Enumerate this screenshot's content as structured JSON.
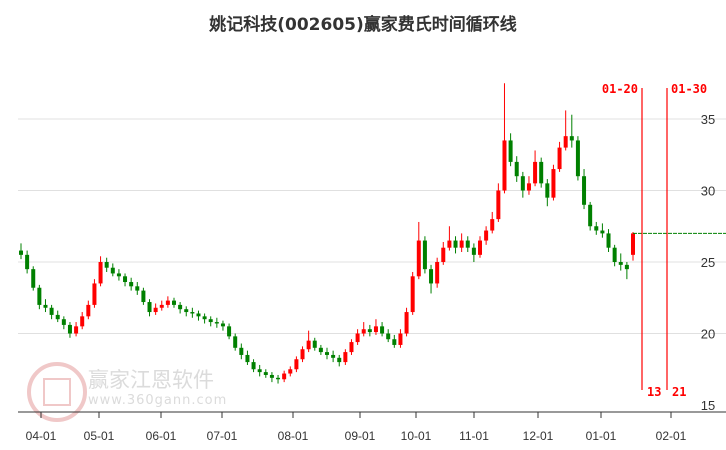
{
  "title": "姚记科技(002605)赢家费氏时间循环线",
  "watermark": {
    "brand": "赢家江恩软件",
    "url": "www.360gann.com",
    "seal": "江赢恩家"
  },
  "colors": {
    "up": "#ff0000",
    "down": "#008000",
    "cycle_line": "#ff0000",
    "last_price_line": "#008000",
    "grid": "#e0e0e0"
  },
  "chart_data": {
    "type": "candlestick",
    "title": "姚记科技(002605)赢家费氏时间循环线",
    "y_axis": {
      "position": "right",
      "ticks": [
        15,
        20,
        25,
        30,
        35
      ],
      "ylim": [
        15,
        38
      ]
    },
    "x_axis": {
      "ticks": [
        "04-01",
        "05-01",
        "06-01",
        "07-01",
        "08-01",
        "09-01",
        "10-01",
        "11-01",
        "12-01",
        "01-01",
        "02-01"
      ]
    },
    "grid": "horizontal",
    "ohlc_format": [
      "open",
      "high",
      "low",
      "close"
    ],
    "candles": [
      [
        25.8,
        26.3,
        25.2,
        25.5
      ],
      [
        25.5,
        25.8,
        24.2,
        24.5
      ],
      [
        24.5,
        24.7,
        23.0,
        23.2
      ],
      [
        23.2,
        23.4,
        21.7,
        22.0
      ],
      [
        22.0,
        22.4,
        21.5,
        21.8
      ],
      [
        21.8,
        22.0,
        21.0,
        21.3
      ],
      [
        21.3,
        21.6,
        20.8,
        21.0
      ],
      [
        21.0,
        21.2,
        20.3,
        20.6
      ],
      [
        20.6,
        20.8,
        19.7,
        20.0
      ],
      [
        20.0,
        20.8,
        19.8,
        20.5
      ],
      [
        20.5,
        21.5,
        20.3,
        21.2
      ],
      [
        21.2,
        22.3,
        21.0,
        22.0
      ],
      [
        22.0,
        23.8,
        21.8,
        23.5
      ],
      [
        23.5,
        25.4,
        23.3,
        25.0
      ],
      [
        25.0,
        25.3,
        24.3,
        24.6
      ],
      [
        24.6,
        24.9,
        24.0,
        24.2
      ],
      [
        24.2,
        24.5,
        23.7,
        24.0
      ],
      [
        24.0,
        24.2,
        23.3,
        23.6
      ],
      [
        23.6,
        23.9,
        23.0,
        23.3
      ],
      [
        23.3,
        23.6,
        22.7,
        23.0
      ],
      [
        23.0,
        23.2,
        22.0,
        22.2
      ],
      [
        22.2,
        22.4,
        21.2,
        21.5
      ],
      [
        21.5,
        22.1,
        21.3,
        21.8
      ],
      [
        21.8,
        22.3,
        21.6,
        22.0
      ],
      [
        22.0,
        22.6,
        21.8,
        22.3
      ],
      [
        22.3,
        22.5,
        21.8,
        22.0
      ],
      [
        22.0,
        22.2,
        21.4,
        21.7
      ],
      [
        21.7,
        21.9,
        21.2,
        21.5
      ],
      [
        21.5,
        21.8,
        21.1,
        21.4
      ],
      [
        21.4,
        21.6,
        20.9,
        21.2
      ],
      [
        21.2,
        21.4,
        20.7,
        21.0
      ],
      [
        21.0,
        21.2,
        20.5,
        20.8
      ],
      [
        20.8,
        21.1,
        20.4,
        20.7
      ],
      [
        20.7,
        20.9,
        20.2,
        20.5
      ],
      [
        20.5,
        20.7,
        19.6,
        19.8
      ],
      [
        19.8,
        20.0,
        18.8,
        19.0
      ],
      [
        19.0,
        19.3,
        18.2,
        18.5
      ],
      [
        18.5,
        18.8,
        17.8,
        18.0
      ],
      [
        18.0,
        18.2,
        17.3,
        17.5
      ],
      [
        17.5,
        17.8,
        17.0,
        17.3
      ],
      [
        17.3,
        17.5,
        16.9,
        17.1
      ],
      [
        17.1,
        17.3,
        16.6,
        16.9
      ],
      [
        16.9,
        17.1,
        16.5,
        16.8
      ],
      [
        16.8,
        17.4,
        16.6,
        17.2
      ],
      [
        17.2,
        17.7,
        17.0,
        17.5
      ],
      [
        17.5,
        18.4,
        17.3,
        18.2
      ],
      [
        18.2,
        19.1,
        18.0,
        18.9
      ],
      [
        18.9,
        20.2,
        18.7,
        19.5
      ],
      [
        19.5,
        19.7,
        18.8,
        19.0
      ],
      [
        19.0,
        19.2,
        18.5,
        18.7
      ],
      [
        18.7,
        19.0,
        18.2,
        18.5
      ],
      [
        18.5,
        18.8,
        18.0,
        18.3
      ],
      [
        18.3,
        18.5,
        17.7,
        18.0
      ],
      [
        18.0,
        18.9,
        17.8,
        18.7
      ],
      [
        18.7,
        19.6,
        18.5,
        19.4
      ],
      [
        19.4,
        20.3,
        19.2,
        20.0
      ],
      [
        20.0,
        20.8,
        19.8,
        20.3
      ],
      [
        20.3,
        20.6,
        19.8,
        20.1
      ],
      [
        20.1,
        21.0,
        19.9,
        20.5
      ],
      [
        20.5,
        20.8,
        19.8,
        20.0
      ],
      [
        20.0,
        20.3,
        19.4,
        19.6
      ],
      [
        19.6,
        19.9,
        19.0,
        19.2
      ],
      [
        19.2,
        20.3,
        19.0,
        20.0
      ],
      [
        20.0,
        21.8,
        19.8,
        21.5
      ],
      [
        21.5,
        24.3,
        21.3,
        24.0
      ],
      [
        24.0,
        27.8,
        23.8,
        26.5
      ],
      [
        26.5,
        26.8,
        24.2,
        24.5
      ],
      [
        24.5,
        24.8,
        22.8,
        23.5
      ],
      [
        23.5,
        25.3,
        23.2,
        25.0
      ],
      [
        25.0,
        26.4,
        24.8,
        26.0
      ],
      [
        26.0,
        27.5,
        25.8,
        26.5
      ],
      [
        26.5,
        26.8,
        25.6,
        26.0
      ],
      [
        26.0,
        27.0,
        25.7,
        26.5
      ],
      [
        26.5,
        26.8,
        25.7,
        26.0
      ],
      [
        26.0,
        26.3,
        25.0,
        25.5
      ],
      [
        25.5,
        26.8,
        25.3,
        26.5
      ],
      [
        26.5,
        27.5,
        26.2,
        27.2
      ],
      [
        27.2,
        28.5,
        27.0,
        28.0
      ],
      [
        28.0,
        30.5,
        27.8,
        30.0
      ],
      [
        30.0,
        37.5,
        29.8,
        33.5
      ],
      [
        33.5,
        34.0,
        31.7,
        32.0
      ],
      [
        32.0,
        32.4,
        30.6,
        31.0
      ],
      [
        31.0,
        31.3,
        29.5,
        30.0
      ],
      [
        30.0,
        31.0,
        29.7,
        30.5
      ],
      [
        30.5,
        32.8,
        30.3,
        32.0
      ],
      [
        32.0,
        32.3,
        30.2,
        30.5
      ],
      [
        30.5,
        30.8,
        28.9,
        29.5
      ],
      [
        29.5,
        31.8,
        29.3,
        31.5
      ],
      [
        31.5,
        33.4,
        31.3,
        33.0
      ],
      [
        33.0,
        35.6,
        32.8,
        33.8
      ],
      [
        33.8,
        35.3,
        33.0,
        33.5
      ],
      [
        33.5,
        33.8,
        30.7,
        31.0
      ],
      [
        31.0,
        31.5,
        28.7,
        29.0
      ],
      [
        29.0,
        29.2,
        27.2,
        27.5
      ],
      [
        27.5,
        27.8,
        26.9,
        27.2
      ],
      [
        27.2,
        27.7,
        26.7,
        27.0
      ],
      [
        27.0,
        27.3,
        25.7,
        26.0
      ],
      [
        26.0,
        26.2,
        24.7,
        25.0
      ],
      [
        25.0,
        25.6,
        24.4,
        24.8
      ],
      [
        24.8,
        25.0,
        23.8,
        24.5
      ],
      [
        25.5,
        27.1,
        25.1,
        27.0
      ]
    ],
    "last_price": 27.0,
    "cycle_lines": [
      {
        "date": "01-20",
        "count": "13"
      },
      {
        "date": "01-30",
        "count": "21"
      }
    ]
  }
}
